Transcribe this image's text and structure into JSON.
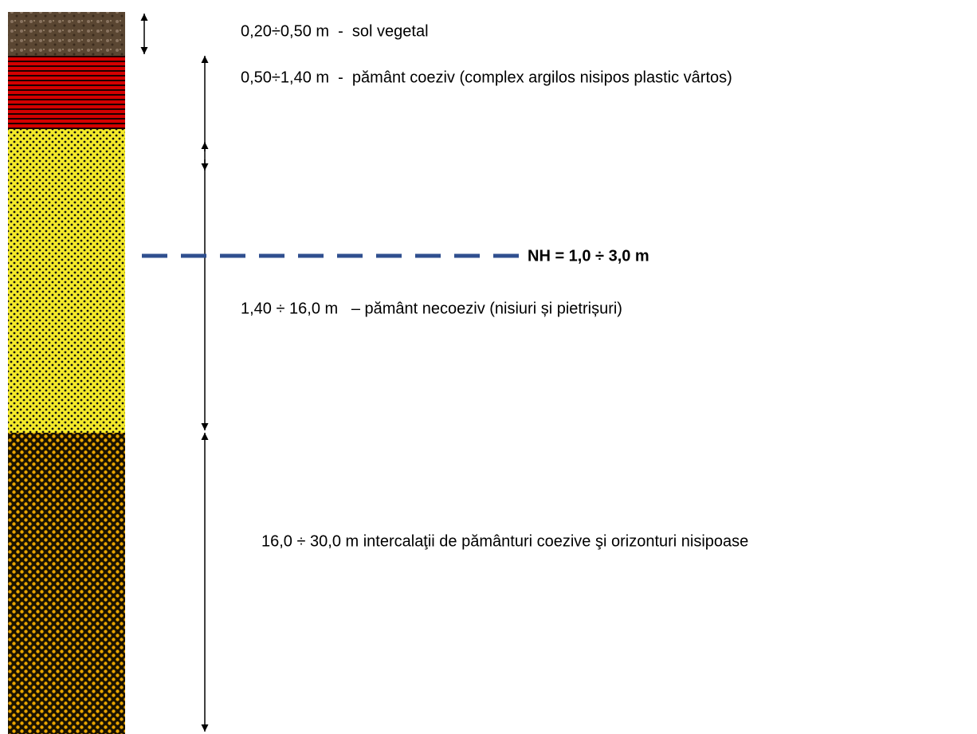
{
  "layers": [
    {
      "label": "0,20÷0,50 m  -  sol vegetal"
    },
    {
      "label": "0,50÷1,40 m  -  pământ coeziv (complex argilos nisipos plastic vârtos)"
    },
    {
      "label": "1,40 ÷ 16,0 m   – pământ necoeziv (nisiuri și pietrișuri)"
    },
    {
      "label": "16,0 ÷ 30,0 m intercalaţii de pământuri coezive şi orizonturi nisipoase"
    }
  ],
  "water_level": {
    "label": "NH = 1,0 ÷ 3,0 m"
  }
}
